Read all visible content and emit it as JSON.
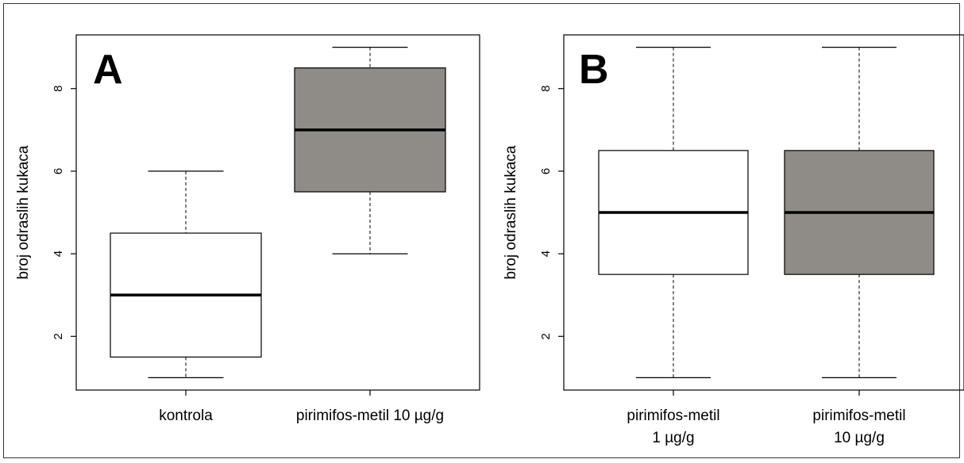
{
  "chart_data": [
    {
      "type": "boxplot",
      "panel_label": "A",
      "ylabel": "broj odraslih kukaca",
      "ylim": [
        0.7,
        9.3
      ],
      "yticks": [
        2,
        4,
        6,
        8
      ],
      "grid": false,
      "legend": "none",
      "categories": [
        {
          "label_lines": [
            "kontrola"
          ],
          "fill": "#ffffff",
          "stats": {
            "min": 1,
            "q1": 1.5,
            "median": 3,
            "q3": 4.5,
            "max": 6
          }
        },
        {
          "label_lines": [
            "pirimifos-metil 10 µg/g"
          ],
          "fill": "#8f8b86",
          "stats": {
            "min": 4,
            "q1": 5.5,
            "median": 7,
            "q3": 8.5,
            "max": 9
          }
        }
      ]
    },
    {
      "type": "boxplot",
      "panel_label": "B",
      "ylabel": "broj odraslih kukaca",
      "ylim": [
        0.7,
        9.3
      ],
      "yticks": [
        2,
        4,
        6,
        8
      ],
      "grid": false,
      "legend": "none",
      "categories": [
        {
          "label_lines": [
            "pirimifos-metil",
            "1 µg/g"
          ],
          "fill": "#ffffff",
          "stats": {
            "min": 1,
            "q1": 3.5,
            "median": 5,
            "q3": 6.5,
            "max": 9
          }
        },
        {
          "label_lines": [
            "pirimifos-metil",
            "10 µg/g"
          ],
          "fill": "#8f8b86",
          "stats": {
            "min": 1,
            "q1": 3.5,
            "median": 5,
            "q3": 6.5,
            "max": 9
          }
        }
      ]
    }
  ]
}
